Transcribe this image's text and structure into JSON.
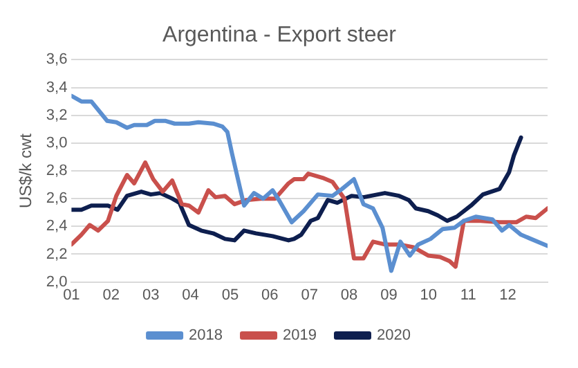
{
  "chart_data": {
    "type": "line",
    "title": "Argentina - Export steer",
    "ylabel": "US$/k cwt",
    "xlim": [
      1,
      13
    ],
    "xticks": [
      {
        "value": 1,
        "label": "01"
      },
      {
        "value": 2,
        "label": "02"
      },
      {
        "value": 3,
        "label": "03"
      },
      {
        "value": 4,
        "label": "04"
      },
      {
        "value": 5,
        "label": "05"
      },
      {
        "value": 6,
        "label": "06"
      },
      {
        "value": 7,
        "label": "07"
      },
      {
        "value": 8,
        "label": "08"
      },
      {
        "value": 9,
        "label": "09"
      },
      {
        "value": 10,
        "label": "10"
      },
      {
        "value": 11,
        "label": "11"
      },
      {
        "value": 12,
        "label": "12"
      }
    ],
    "ylim": [
      2.0,
      3.6
    ],
    "yticks": [
      {
        "value": 2.0,
        "label": "2,0"
      },
      {
        "value": 2.2,
        "label": "2,2"
      },
      {
        "value": 2.4,
        "label": "2,4"
      },
      {
        "value": 2.6,
        "label": "2,6"
      },
      {
        "value": 2.8,
        "label": "2,8"
      },
      {
        "value": 3.0,
        "label": "3,0"
      },
      {
        "value": 3.2,
        "label": "3,2"
      },
      {
        "value": 3.4,
        "label": "3,4"
      },
      {
        "value": 3.6,
        "label": "3,6"
      }
    ],
    "grid": "y",
    "legend": "bottom",
    "marker": "none",
    "line_style": "solid",
    "series": [
      {
        "name": "2018",
        "color": "#5b8fd0",
        "x": [
          1,
          1.25,
          1.5,
          1.9,
          2.13,
          2.4,
          2.58,
          2.9,
          3.1,
          3.36,
          3.6,
          3.96,
          4.2,
          4.57,
          4.8,
          4.93,
          5.05,
          5.35,
          5.6,
          5.83,
          6.07,
          6.25,
          6.55,
          6.85,
          7.21,
          7.58,
          7.82,
          8.12,
          8.36,
          8.6,
          8.84,
          9.06,
          9.29,
          9.53,
          9.74,
          10.05,
          10.35,
          10.65,
          10.89,
          11.19,
          11.61,
          11.85,
          12.03,
          12.33,
          13
        ],
        "values": [
          3.34,
          3.3,
          3.3,
          3.16,
          3.15,
          3.11,
          3.13,
          3.13,
          3.16,
          3.16,
          3.14,
          3.14,
          3.15,
          3.14,
          3.12,
          3.08,
          2.92,
          2.55,
          2.64,
          2.6,
          2.66,
          2.58,
          2.43,
          2.51,
          2.63,
          2.62,
          2.67,
          2.74,
          2.56,
          2.53,
          2.39,
          2.08,
          2.29,
          2.19,
          2.27,
          2.31,
          2.38,
          2.39,
          2.44,
          2.47,
          2.45,
          2.37,
          2.41,
          2.34,
          2.26
        ]
      },
      {
        "name": "2019",
        "color": "#c9504c",
        "x": [
          1,
          1.25,
          1.46,
          1.67,
          1.92,
          2.13,
          2.4,
          2.58,
          2.86,
          3.06,
          3.3,
          3.54,
          3.78,
          3.96,
          4.2,
          4.45,
          4.63,
          4.87,
          5.11,
          5.41,
          5.77,
          6.13,
          6.47,
          6.61,
          6.85,
          6.97,
          7.33,
          7.58,
          7.88,
          8.12,
          8.36,
          8.6,
          8.9,
          9.26,
          9.62,
          9.99,
          10.29,
          10.53,
          10.68,
          10.89,
          11.31,
          11.79,
          12.21,
          12.46,
          12.7,
          13
        ],
        "values": [
          2.27,
          2.34,
          2.41,
          2.37,
          2.44,
          2.62,
          2.77,
          2.71,
          2.86,
          2.74,
          2.65,
          2.73,
          2.56,
          2.55,
          2.5,
          2.66,
          2.61,
          2.62,
          2.56,
          2.59,
          2.6,
          2.6,
          2.71,
          2.74,
          2.74,
          2.78,
          2.75,
          2.72,
          2.6,
          2.17,
          2.17,
          2.29,
          2.27,
          2.27,
          2.25,
          2.19,
          2.18,
          2.15,
          2.11,
          2.44,
          2.44,
          2.43,
          2.43,
          2.47,
          2.46,
          2.53
        ]
      },
      {
        "name": "2020",
        "color": "#0e1f4f",
        "x": [
          1,
          1.25,
          1.5,
          1.92,
          2.16,
          2.4,
          2.76,
          3,
          3.24,
          3.54,
          3.72,
          3.96,
          4.27,
          4.57,
          4.87,
          5.11,
          5.35,
          5.65,
          6.07,
          6.47,
          6.61,
          6.79,
          7.03,
          7.21,
          7.46,
          7.7,
          8.06,
          8.36,
          8.9,
          9.26,
          9.5,
          9.68,
          9.99,
          10.23,
          10.47,
          10.71,
          11.07,
          11.37,
          11.79,
          12.03,
          12.15,
          12.33
        ],
        "values": [
          2.52,
          2.52,
          2.55,
          2.55,
          2.52,
          2.62,
          2.65,
          2.63,
          2.64,
          2.6,
          2.57,
          2.41,
          2.37,
          2.35,
          2.31,
          2.3,
          2.37,
          2.35,
          2.33,
          2.3,
          2.31,
          2.34,
          2.44,
          2.46,
          2.59,
          2.57,
          2.62,
          2.61,
          2.64,
          2.62,
          2.59,
          2.53,
          2.51,
          2.48,
          2.44,
          2.47,
          2.55,
          2.63,
          2.67,
          2.79,
          2.91,
          3.04
        ]
      }
    ]
  }
}
